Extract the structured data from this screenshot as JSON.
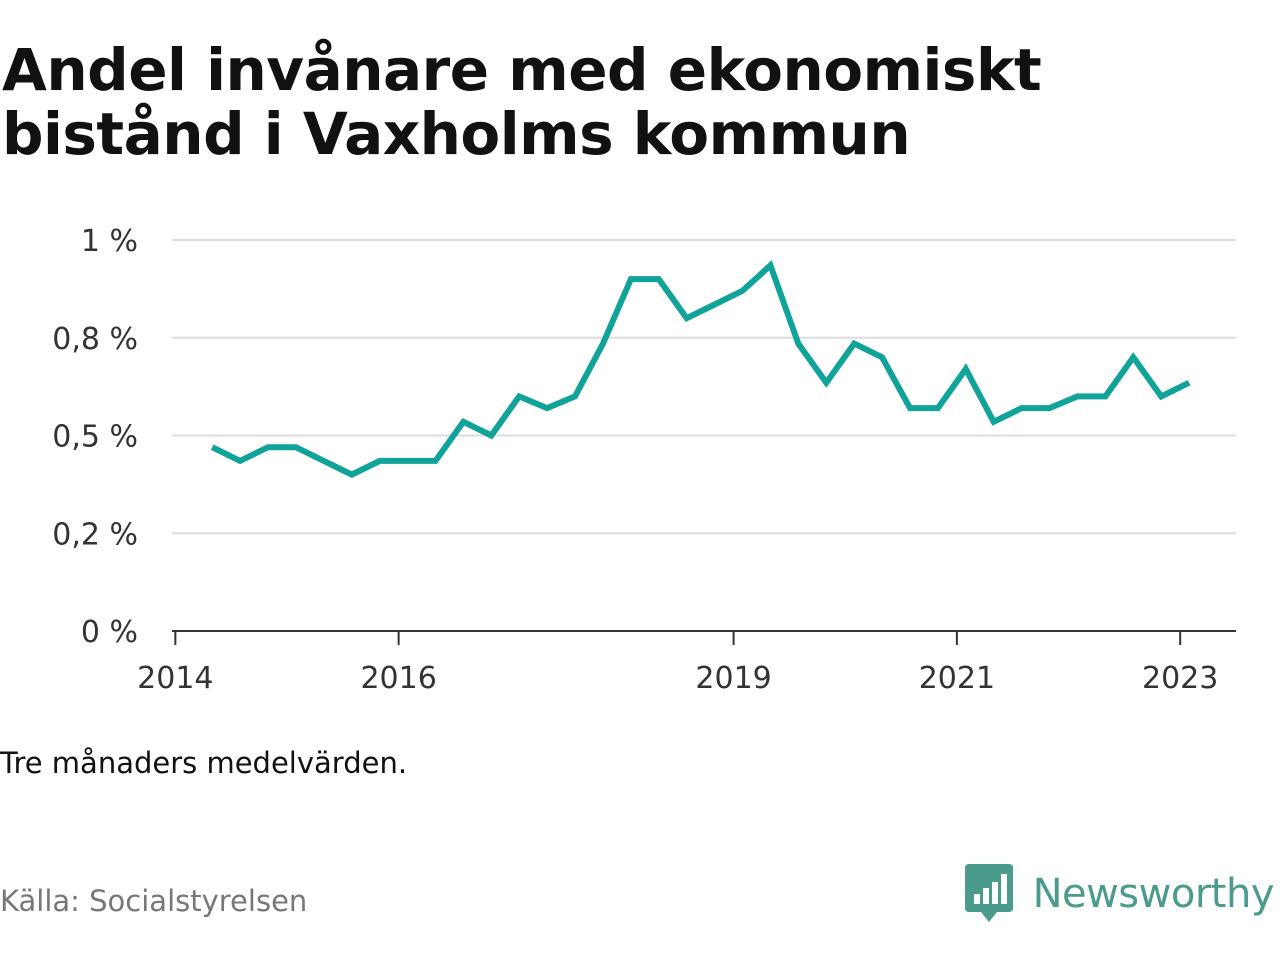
{
  "title": "Andel invånare med ekonomiskt bistånd i Vaxholms kommun",
  "note": "Tre månaders medelvärden.",
  "source": "Källa: Socialstyrelsen",
  "brand": {
    "name": "Newsworthy",
    "icon": "newsworthy-logo-icon",
    "color": "#4a9b8c"
  },
  "chart_data": {
    "type": "line",
    "title": "Andel invånare med ekonomiskt bistånd i Vaxholms kommun",
    "xlabel": "",
    "ylabel": "",
    "ylim": [
      0,
      1
    ],
    "xlim": [
      2013.97,
      2023.5
    ],
    "grid": true,
    "legend": "none",
    "line_color": "#0fa39a",
    "y_ticks": [
      {
        "value": 0,
        "label": "0 %"
      },
      {
        "value": 0.25,
        "label": "0,2 %"
      },
      {
        "value": 0.5,
        "label": "0,5 %"
      },
      {
        "value": 0.75,
        "label": "0,8 %"
      },
      {
        "value": 1,
        "label": "1 %"
      }
    ],
    "x_ticks": [
      {
        "value": 2014,
        "label": "2014"
      },
      {
        "value": 2016,
        "label": "2016"
      },
      {
        "value": 2019,
        "label": "2019"
      },
      {
        "value": 2021,
        "label": "2021"
      },
      {
        "value": 2023,
        "label": "2023"
      }
    ],
    "series": [
      {
        "x": [
          2014.33,
          2014.58,
          2014.83,
          2015.08,
          2015.33,
          2015.58,
          2015.83,
          2016.08,
          2016.33,
          2016.58,
          2016.83,
          2017.08,
          2017.33,
          2017.58,
          2017.83,
          2018.08,
          2018.33,
          2018.58,
          2018.83,
          2019.08,
          2019.33,
          2019.58,
          2019.83,
          2020.08,
          2020.33,
          2020.58,
          2020.83,
          2021.08,
          2021.33,
          2021.58,
          2021.83,
          2022.08,
          2022.33,
          2022.58,
          2022.83,
          2023.08
        ],
        "values": [
          0.47,
          0.435,
          0.47,
          0.47,
          0.435,
          0.4,
          0.435,
          0.435,
          0.435,
          0.535,
          0.5,
          0.6,
          0.57,
          0.6,
          0.735,
          0.9,
          0.9,
          0.8,
          0.835,
          0.87,
          0.935,
          0.735,
          0.635,
          0.735,
          0.7,
          0.57,
          0.57,
          0.67,
          0.535,
          0.57,
          0.57,
          0.6,
          0.6,
          0.7,
          0.6,
          0.635
        ]
      }
    ]
  }
}
